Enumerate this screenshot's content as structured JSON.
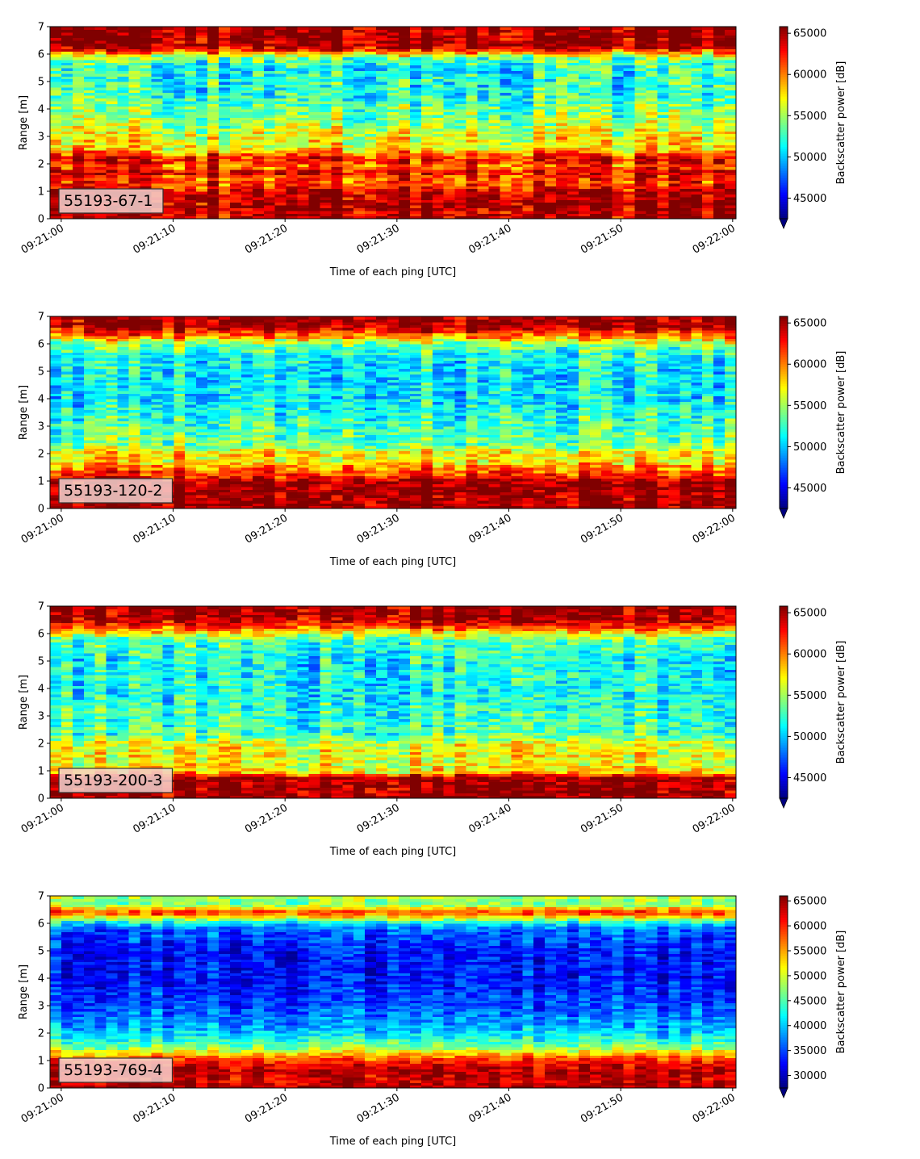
{
  "chart_data": [
    {
      "type": "heatmap",
      "label": "55193-67-1",
      "xlabel": "Time of each ping [UTC]",
      "ylabel": "Range [m]",
      "x_ticks": [
        "09:21:00",
        "09:21:10",
        "09:21:20",
        "09:21:30",
        "09:21:40",
        "09:21:50",
        "09:22:00"
      ],
      "x_range_seconds": [
        -1,
        60.3
      ],
      "ylim": [
        0,
        7
      ],
      "y_ticks": [
        "0",
        "1",
        "2",
        "3",
        "4",
        "5",
        "6",
        "7"
      ],
      "colorbar": {
        "label": "Backscatter power [dB]",
        "range": [
          42500,
          65800
        ],
        "ticks": [
          45000,
          50000,
          55000,
          60000,
          65000
        ],
        "tick_labels": [
          "45000",
          "50000",
          "55000",
          "60000",
          "65000"
        ],
        "colormap": "jet",
        "extend": "min"
      },
      "range_profile": [
        [
          0.0,
          0.92
        ],
        [
          0.1,
          0.98
        ],
        [
          0.2,
          0.92
        ],
        [
          0.4,
          0.97
        ],
        [
          0.7,
          0.95
        ],
        [
          1.0,
          0.94
        ],
        [
          1.2,
          0.83
        ],
        [
          1.5,
          0.8
        ],
        [
          1.7,
          0.93
        ],
        [
          1.9,
          0.75
        ],
        [
          2.1,
          0.87
        ],
        [
          2.3,
          0.82
        ],
        [
          2.6,
          0.62
        ],
        [
          3.0,
          0.62
        ],
        [
          3.5,
          0.52
        ],
        [
          4.0,
          0.48
        ],
        [
          4.5,
          0.42
        ],
        [
          5.0,
          0.4
        ],
        [
          5.5,
          0.39
        ],
        [
          5.9,
          0.5
        ],
        [
          6.1,
          0.8
        ],
        [
          6.3,
          0.97
        ],
        [
          7.0,
          0.98
        ]
      ],
      "noise": 0.24
    },
    {
      "type": "heatmap",
      "label": "55193-120-2",
      "xlabel": "Time of each ping [UTC]",
      "ylabel": "Range [m]",
      "x_ticks": [
        "09:21:00",
        "09:21:10",
        "09:21:20",
        "09:21:30",
        "09:21:40",
        "09:21:50",
        "09:22:00"
      ],
      "x_range_seconds": [
        -1,
        60.3
      ],
      "ylim": [
        0,
        7
      ],
      "y_ticks": [
        "0",
        "1",
        "2",
        "3",
        "4",
        "5",
        "6",
        "7"
      ],
      "colorbar": {
        "label": "Backscatter power [dB]",
        "range": [
          42500,
          65800
        ],
        "ticks": [
          45000,
          50000,
          55000,
          60000,
          65000
        ],
        "tick_labels": [
          "45000",
          "50000",
          "55000",
          "60000",
          "65000"
        ],
        "colormap": "jet",
        "extend": "min"
      },
      "range_profile": [
        [
          0.0,
          0.98
        ],
        [
          1.0,
          0.98
        ],
        [
          1.2,
          0.85
        ],
        [
          1.5,
          0.75
        ],
        [
          1.8,
          0.62
        ],
        [
          2.0,
          0.68
        ],
        [
          2.3,
          0.5
        ],
        [
          3.0,
          0.45
        ],
        [
          3.5,
          0.4
        ],
        [
          4.0,
          0.36
        ],
        [
          4.5,
          0.36
        ],
        [
          5.0,
          0.36
        ],
        [
          5.5,
          0.38
        ],
        [
          6.0,
          0.5
        ],
        [
          6.3,
          0.75
        ],
        [
          6.6,
          0.95
        ],
        [
          7.0,
          0.98
        ]
      ],
      "noise": 0.22
    },
    {
      "type": "heatmap",
      "label": "55193-200-3",
      "xlabel": "Time of each ping [UTC]",
      "ylabel": "Range [m]",
      "x_ticks": [
        "09:21:00",
        "09:21:10",
        "09:21:20",
        "09:21:30",
        "09:21:40",
        "09:21:50",
        "09:22:00"
      ],
      "x_range_seconds": [
        -1,
        60.3
      ],
      "ylim": [
        0,
        7
      ],
      "y_ticks": [
        "0",
        "1",
        "2",
        "3",
        "4",
        "5",
        "6",
        "7"
      ],
      "colorbar": {
        "label": "Backscatter power [dB]",
        "range": [
          42500,
          65800
        ],
        "ticks": [
          45000,
          50000,
          55000,
          60000,
          65000
        ],
        "tick_labels": [
          "45000",
          "50000",
          "55000",
          "60000",
          "65000"
        ],
        "colormap": "jet",
        "extend": "min"
      },
      "range_profile": [
        [
          0.0,
          0.98
        ],
        [
          0.8,
          0.98
        ],
        [
          0.9,
          0.7
        ],
        [
          1.2,
          0.6
        ],
        [
          1.5,
          0.62
        ],
        [
          2.0,
          0.6
        ],
        [
          2.3,
          0.45
        ],
        [
          3.0,
          0.42
        ],
        [
          4.0,
          0.38
        ],
        [
          5.0,
          0.38
        ],
        [
          5.8,
          0.45
        ],
        [
          6.1,
          0.7
        ],
        [
          6.5,
          0.95
        ],
        [
          7.0,
          0.97
        ]
      ],
      "noise": 0.22
    },
    {
      "type": "heatmap",
      "label": "55193-769-4",
      "xlabel": "Time of each ping [UTC]",
      "ylabel": "Range [m]",
      "x_ticks": [
        "09:21:00",
        "09:21:10",
        "09:21:20",
        "09:21:30",
        "09:21:40",
        "09:21:50",
        "09:22:00"
      ],
      "x_range_seconds": [
        -1,
        60.3
      ],
      "ylim": [
        0,
        7
      ],
      "y_ticks": [
        "0",
        "1",
        "2",
        "3",
        "4",
        "5",
        "6",
        "7"
      ],
      "colorbar": {
        "label": "Backscatter power [dB]",
        "range": [
          27500,
          66000
        ],
        "ticks": [
          30000,
          35000,
          40000,
          45000,
          50000,
          55000,
          60000,
          65000
        ],
        "tick_labels": [
          "30000",
          "35000",
          "40000",
          "45000",
          "50000",
          "55000",
          "60000",
          "65000"
        ],
        "colormap": "jet",
        "extend": "min"
      },
      "range_profile": [
        [
          0.0,
          0.97
        ],
        [
          0.3,
          0.9
        ],
        [
          0.6,
          0.95
        ],
        [
          0.9,
          0.88
        ],
        [
          1.2,
          0.72
        ],
        [
          1.5,
          0.5
        ],
        [
          1.8,
          0.4
        ],
        [
          2.2,
          0.3
        ],
        [
          3.0,
          0.2
        ],
        [
          4.0,
          0.14
        ],
        [
          5.0,
          0.15
        ],
        [
          5.8,
          0.22
        ],
        [
          6.1,
          0.45
        ],
        [
          6.4,
          0.85
        ],
        [
          6.7,
          0.5
        ],
        [
          7.0,
          0.55
        ]
      ],
      "noise": 0.16
    }
  ]
}
